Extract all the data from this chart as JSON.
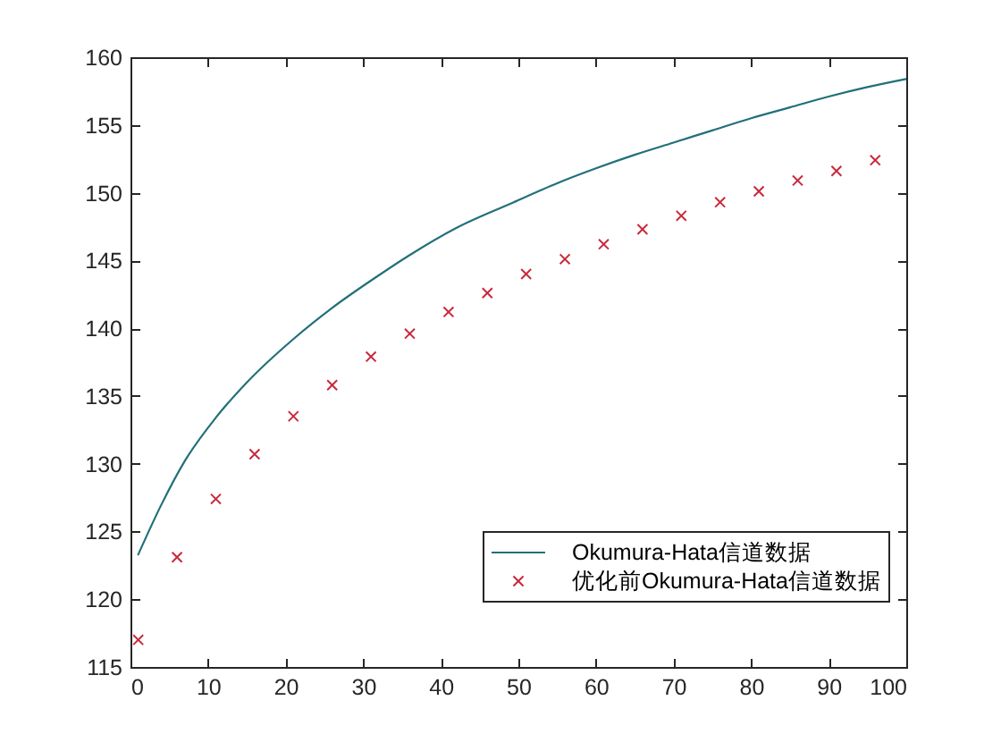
{
  "chart_data": {
    "type": "line",
    "xlim": [
      0,
      100
    ],
    "xticks": [
      0,
      10,
      20,
      30,
      40,
      50,
      60,
      70,
      80,
      90,
      100
    ],
    "ylim": [
      115,
      160
    ],
    "yticks": [
      115,
      120,
      125,
      130,
      135,
      140,
      145,
      150,
      155,
      160
    ],
    "legend": "bottom right",
    "series": [
      {
        "name": "Okumura-Hata信道数据",
        "color": "#22707a",
        "x": [
          1,
          4,
          7,
          11,
          15,
          21,
          26,
          32,
          36,
          42,
          49,
          55,
          60,
          65,
          70,
          75,
          80,
          85,
          90,
          95,
          100
        ],
        "values": [
          123.3,
          127.0,
          130.2,
          133.4,
          136.0,
          139.2,
          141.5,
          143.9,
          145.4,
          147.4,
          149.2,
          150.7,
          151.8,
          152.8,
          153.7,
          154.6,
          155.5,
          156.3,
          157.1,
          157.8,
          158.4
        ]
      },
      {
        "name": "优化前Okumura-Hata信道数据",
        "type": "scatter",
        "color": "#c8283c",
        "marker": "cross",
        "x": [
          1,
          6,
          11,
          16,
          21,
          26,
          31,
          36,
          41,
          46,
          51,
          56,
          61,
          66,
          71,
          76,
          81,
          86,
          91,
          96
        ],
        "values": [
          117.0,
          123.1,
          127.4,
          130.7,
          133.5,
          135.8,
          137.9,
          139.6,
          141.2,
          142.6,
          144.0,
          145.1,
          146.2,
          147.3,
          148.3,
          149.3,
          150.1,
          150.9,
          151.6,
          152.4
        ]
      }
    ]
  }
}
